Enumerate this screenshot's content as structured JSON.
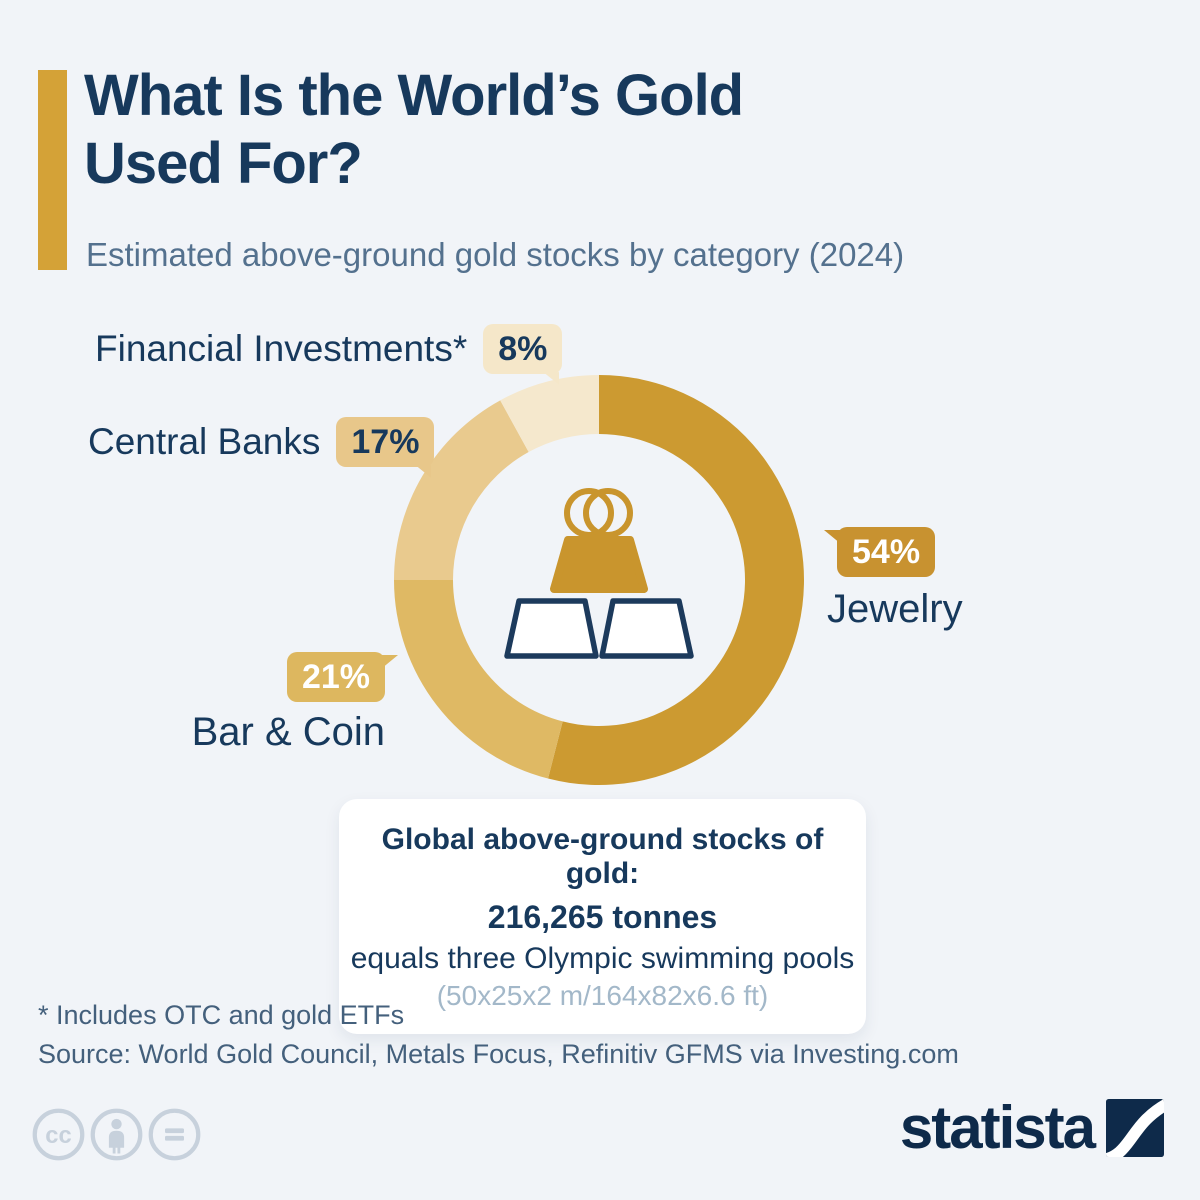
{
  "page": {
    "background_color": "#F1F4F8"
  },
  "header": {
    "accent_color": "#D4A237",
    "title_lines": [
      "What Is the World’s Gold",
      "Used For?"
    ],
    "subtitle": "Estimated above-ground gold stocks by category (2024)"
  },
  "chart_data": {
    "type": "pie",
    "variant": "donut",
    "title": "What Is the World’s Gold Used For?",
    "subtitle": "Estimated above-ground gold stocks by category (2024)",
    "unit": "%",
    "start_angle": "top",
    "direction": "clockwise",
    "segments": [
      {
        "label": "Jewelry",
        "value": 54,
        "display": "54%",
        "color": "#CC9A31",
        "badge_bg": "#C89230",
        "badge_text_color": "#FFFFFF"
      },
      {
        "label": "Bar & Coin",
        "value": 21,
        "display": "21%",
        "color": "#DFB964",
        "badge_bg": "#DDB75F",
        "badge_text_color": "#FFFFFF"
      },
      {
        "label": "Central Banks",
        "value": 17,
        "display": "17%",
        "color": "#E9CA8E",
        "badge_bg": "#E8C78A",
        "badge_text_color": "#17395C"
      },
      {
        "label": "Financial Investments*",
        "value": 8,
        "display": "8%",
        "color": "#F5E8CD",
        "badge_bg": "#F5E7C9",
        "badge_text_color": "#17395C"
      }
    ],
    "center_icon": "gold-bars-and-rings",
    "icon_colors": {
      "gold": "#C9952D",
      "navy_outline": "#1C3A5C",
      "bar_fill": "#FFFFFF"
    }
  },
  "info_box": {
    "heading": "Global above-ground stocks of gold:",
    "amount": "216,265 tonnes",
    "comparison": "equals three Olympic swimming pools",
    "dimensions": "(50x25x2 m/164x82x6.6 ft)"
  },
  "footer": {
    "footnote": "* Includes OTC and gold ETFs",
    "source": "Source: World Gold Council, Metals Focus, Refinitiv GFMS via Investing.com",
    "brand_name": "statista",
    "license_icons": [
      "cc-icon",
      "attribution-person-icon",
      "equals-icon"
    ]
  }
}
